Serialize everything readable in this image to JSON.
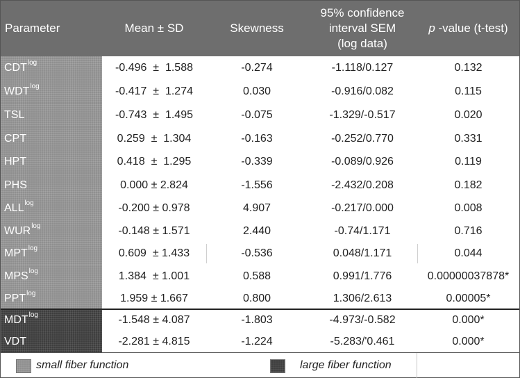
{
  "header": {
    "parameter": "Parameter",
    "mean_sd": "Mean ± SD",
    "skewness": "Skewness",
    "ci_line1": "95% confidence",
    "ci_line2": "interval SEM",
    "ci_line3": "(log data)",
    "p_italic": "p",
    "p_rest": " -value (t-test)"
  },
  "rows": [
    {
      "param": "CDT",
      "sup": "log",
      "mean": "-0.496  ±  1.588",
      "skew": "-0.274",
      "ci": "-1.118/0.127",
      "p": "0.132",
      "group": "small"
    },
    {
      "param": "WDT",
      "sup": "log",
      "mean": "-0.417  ±  1.274",
      "skew": "0.030",
      "ci": "-0.916/0.082",
      "p": "0.115",
      "group": "small"
    },
    {
      "param": "TSL",
      "sup": "",
      "mean": "-0.743  ±  1.495",
      "skew": "-0.075",
      "ci": "-1.329/-0.517",
      "p": "0.020",
      "group": "small"
    },
    {
      "param": "CPT",
      "sup": "",
      "mean": "0.259  ±  1.304",
      "skew": "-0.163",
      "ci": "-0.252/0.770",
      "p": "0.331",
      "group": "small"
    },
    {
      "param": "HPT",
      "sup": "",
      "mean": "0.418  ±  1.295",
      "skew": "-0.339",
      "ci": "-0.089/0.926",
      "p": "0.119",
      "group": "small"
    },
    {
      "param": "PHS",
      "sup": "",
      "mean": "0.000 ± 2.824",
      "skew": "-1.556",
      "ci": "-2.432/0.208",
      "p": "0.182",
      "group": "small"
    },
    {
      "param": "ALL",
      "sup": "log",
      "mean": "-0.200 ± 0.978",
      "skew": "4.907",
      "ci": "-0.217/0.000",
      "p": "0.008",
      "group": "small"
    },
    {
      "param": "WUR",
      "sup": "log",
      "mean": "-0.148 ± 1.571",
      "skew": "2.440",
      "ci": "-0.74/1.171",
      "p": "0.716",
      "group": "small"
    },
    {
      "param": "MPT",
      "sup": "log",
      "mean": "0.609  ± 1.433",
      "skew": "-0.536",
      "ci": "0.048/1.171",
      "p": "0.044",
      "group": "small"
    },
    {
      "param": "MPS",
      "sup": "log",
      "mean": "1.384  ± 1.001",
      "skew": "0.588",
      "ci": "0.991/1.776",
      "p": "0.00000037878*",
      "group": "small"
    },
    {
      "param": "PPT",
      "sup": "log",
      "mean": "1.959 ± 1.667",
      "skew": "0.800",
      "ci": "1.306/2.613",
      "p": "0.00005*",
      "group": "small"
    },
    {
      "param": "MDT",
      "sup": "log",
      "mean": "-1.548 ± 4.087",
      "skew": "-1.803",
      "ci": "-4.973/-0.582",
      "p": "0.000*",
      "group": "large"
    },
    {
      "param": "VDT",
      "sup": "",
      "mean": "-2.281 ± 4.815",
      "skew": "-1.224",
      "ci": "-5.283/'0.461",
      "p": "0.000*",
      "group": "large"
    }
  ],
  "legend": {
    "small_label": "small fiber function",
    "large_label": "large fiber function"
  }
}
